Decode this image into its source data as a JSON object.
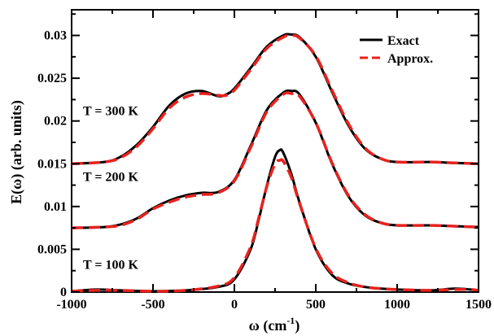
{
  "chart_data": {
    "type": "line",
    "xlabel": "ω (cm",
    "xlabel_sup": "-1",
    "xlabel_close": ")",
    "ylabel": "E(ω) (arb. units)",
    "xlim": [
      -1000,
      1500
    ],
    "ylim": [
      0,
      0.033
    ],
    "xticks": [
      -1000,
      -500,
      0,
      500,
      1000,
      1500
    ],
    "xtick_labels": [
      "-1000",
      "-500",
      "0",
      "500",
      "1000",
      "1500"
    ],
    "yticks": [
      0,
      0.005,
      0.01,
      0.015,
      0.02,
      0.025,
      0.03
    ],
    "ytick_labels": [
      "0",
      "0.005",
      "0.01",
      "0.015",
      "0.02",
      "0.025",
      "0.03"
    ],
    "legend": {
      "position": "top-right",
      "entries": [
        {
          "label": "Exact",
          "color": "#000000",
          "dash": "solid"
        },
        {
          "label": "Approx.",
          "color": "#e8221e",
          "dash": "dashed"
        }
      ]
    },
    "annotations": [
      {
        "text": "T = 300 K",
        "x": -930,
        "y": 0.0207
      },
      {
        "text": "T = 200 K",
        "x": -930,
        "y": 0.013
      },
      {
        "text": "T = 100 K",
        "x": -930,
        "y": 0.0027
      }
    ],
    "series": [
      {
        "name": "Exact",
        "color": "#000000",
        "style": "solid",
        "curves": [
          {
            "x": [
              -1000,
              -800,
              -700,
              -600,
              -500,
              -400,
              -300,
              -200,
              -100,
              -50,
              0,
              100,
              200,
              300,
              350,
              400,
              500,
              600,
              700,
              800,
              900,
              1000,
              1200,
              1350,
              1500
            ],
            "y": [
              0.015,
              0.0152,
              0.0158,
              0.0172,
              0.0193,
              0.0218,
              0.0232,
              0.0235,
              0.0229,
              0.0231,
              0.0238,
              0.0262,
              0.0287,
              0.03,
              0.0301,
              0.0298,
              0.0275,
              0.0234,
              0.0195,
              0.0168,
              0.0156,
              0.0152,
              0.0152,
              0.0151,
              0.015
            ]
          },
          {
            "x": [
              -1000,
              -800,
              -700,
              -600,
              -500,
              -400,
              -300,
              -200,
              -100,
              0,
              100,
              200,
              300,
              350,
              400,
              500,
              600,
              700,
              800,
              900,
              1000,
              1200,
              1350,
              1500
            ],
            "y": [
              0.0075,
              0.0076,
              0.0079,
              0.0086,
              0.0098,
              0.0107,
              0.0113,
              0.0116,
              0.0117,
              0.0131,
              0.0171,
              0.0213,
              0.0233,
              0.0235,
              0.0231,
              0.0198,
              0.015,
              0.0112,
              0.009,
              0.0081,
              0.0078,
              0.0078,
              0.0077,
              0.0076
            ]
          },
          {
            "x": [
              -1000,
              -850,
              -700,
              -500,
              -300,
              -100,
              0,
              100,
              150,
              200,
              250,
              280,
              300,
              350,
              400,
              500,
              600,
              700,
              800,
              900,
              1000,
              1200,
              1350,
              1450,
              1500
            ],
            "y": [
              0.0001,
              0.0003,
              0.0002,
              0.0001,
              0.0002,
              0.0006,
              0.0015,
              0.005,
              0.0085,
              0.0125,
              0.0158,
              0.0166,
              0.0163,
              0.0138,
              0.0105,
              0.005,
              0.002,
              0.001,
              0.0006,
              0.0004,
              0.0003,
              0.0002,
              0.0004,
              0.0003,
              0.0002
            ]
          }
        ]
      },
      {
        "name": "Approx.",
        "color": "#e8221e",
        "style": "dashed",
        "curves": [
          {
            "x": [
              -1000,
              -800,
              -700,
              -600,
              -500,
              -400,
              -300,
              -200,
              -100,
              -50,
              0,
              100,
              200,
              300,
              350,
              400,
              500,
              600,
              700,
              800,
              900,
              1000,
              1200,
              1350,
              1500
            ],
            "y": [
              0.015,
              0.0152,
              0.0157,
              0.017,
              0.0191,
              0.0215,
              0.0228,
              0.0232,
              0.023,
              0.023,
              0.0236,
              0.026,
              0.0285,
              0.0298,
              0.03,
              0.0297,
              0.0276,
              0.0236,
              0.0197,
              0.0169,
              0.0156,
              0.0152,
              0.0152,
              0.0151,
              0.015
            ]
          },
          {
            "x": [
              -1000,
              -800,
              -700,
              -600,
              -500,
              -400,
              -300,
              -200,
              -100,
              0,
              100,
              200,
              300,
              350,
              400,
              500,
              600,
              700,
              800,
              900,
              1000,
              1200,
              1350,
              1500
            ],
            "y": [
              0.0075,
              0.0076,
              0.0078,
              0.0085,
              0.0097,
              0.0105,
              0.0111,
              0.0114,
              0.0116,
              0.013,
              0.0169,
              0.0211,
              0.0231,
              0.0232,
              0.0229,
              0.0198,
              0.0151,
              0.0113,
              0.0091,
              0.0081,
              0.0078,
              0.0078,
              0.0077,
              0.0076
            ]
          },
          {
            "x": [
              -1000,
              -850,
              -700,
              -500,
              -300,
              -100,
              0,
              100,
              150,
              200,
              250,
              280,
              300,
              350,
              400,
              500,
              600,
              700,
              800,
              900,
              1000,
              1200,
              1350,
              1450,
              1500
            ],
            "y": [
              0.0001,
              0.0002,
              0.0002,
              0.0001,
              0.0002,
              0.0007,
              0.0017,
              0.0053,
              0.0087,
              0.0124,
              0.015,
              0.0154,
              0.0153,
              0.0134,
              0.0104,
              0.0051,
              0.0022,
              0.0011,
              0.0006,
              0.0004,
              0.0003,
              0.0002,
              0.0003,
              0.0003,
              0.0002
            ]
          }
        ]
      }
    ]
  }
}
